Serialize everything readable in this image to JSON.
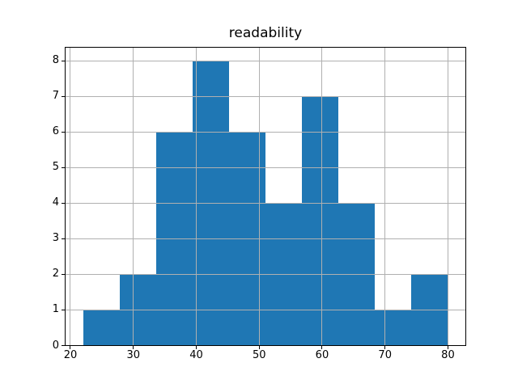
{
  "figure": {
    "title": "readability"
  },
  "colors": {
    "bar": "#1f77b4",
    "grid": "#b0b0b0",
    "spine": "#000000",
    "text": "#000000",
    "background": "#ffffff"
  },
  "chart_data": {
    "type": "bar",
    "subtype": "histogram",
    "title": "readability",
    "xlabel": "",
    "ylabel": "",
    "bin_edges": [
      22.0,
      27.8,
      33.6,
      39.4,
      45.2,
      51.0,
      56.8,
      62.6,
      68.4,
      74.2,
      80.0
    ],
    "counts": [
      1,
      2,
      6,
      8,
      6,
      4,
      7,
      4,
      1,
      2
    ],
    "xlim": [
      19.1,
      82.9
    ],
    "ylim": [
      0,
      8.4
    ],
    "x_ticks": [
      20,
      30,
      40,
      50,
      60,
      70,
      80
    ],
    "y_ticks": [
      0,
      1,
      2,
      3,
      4,
      5,
      6,
      7,
      8
    ],
    "grid": true,
    "grid_position": "above-bars",
    "bar_color": "#1f77b4",
    "legend": null
  }
}
